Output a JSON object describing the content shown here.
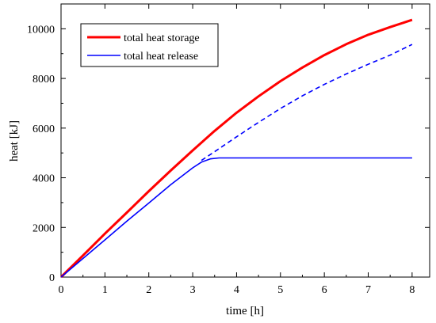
{
  "chart_data": {
    "type": "line",
    "title": "",
    "xlabel": "time [h]",
    "ylabel": "heat [kJ]",
    "xlim": [
      0,
      8.4
    ],
    "ylim": [
      0,
      11000
    ],
    "x_ticks": [
      0,
      1,
      2,
      3,
      4,
      5,
      6,
      7,
      8
    ],
    "y_ticks": [
      0,
      2000,
      4000,
      6000,
      8000,
      10000
    ],
    "grid": false,
    "legend_position": "top-left",
    "series": [
      {
        "name": "total heat storage",
        "color": "#ff0000",
        "style": "solid-thick",
        "x": [
          0,
          0.5,
          1,
          1.5,
          2,
          2.5,
          3,
          3.5,
          4,
          4.5,
          5,
          5.5,
          6,
          6.5,
          7,
          7.5,
          8
        ],
        "y": [
          0,
          870,
          1750,
          2600,
          3460,
          4290,
          5100,
          5890,
          6620,
          7280,
          7890,
          8440,
          8940,
          9380,
          9760,
          10070,
          10360
        ]
      },
      {
        "name": "total heat release",
        "color": "#0000ff",
        "style": "solid",
        "x": [
          0,
          0.5,
          1,
          1.5,
          2,
          2.5,
          3,
          3.2,
          3.4,
          3.6,
          3.8,
          4,
          5,
          6,
          7,
          8
        ],
        "y": [
          0,
          750,
          1500,
          2250,
          2980,
          3720,
          4400,
          4630,
          4760,
          4800,
          4800,
          4800,
          4800,
          4800,
          4800,
          4800
        ]
      },
      {
        "color": "#0000ff",
        "style": "dashed",
        "x": [
          3.2,
          3.5,
          4,
          4.5,
          5,
          5.5,
          6,
          6.5,
          7,
          7.5,
          8
        ],
        "y": [
          4700,
          5050,
          5650,
          6230,
          6790,
          7300,
          7760,
          8180,
          8570,
          8940,
          9370
        ]
      }
    ]
  }
}
